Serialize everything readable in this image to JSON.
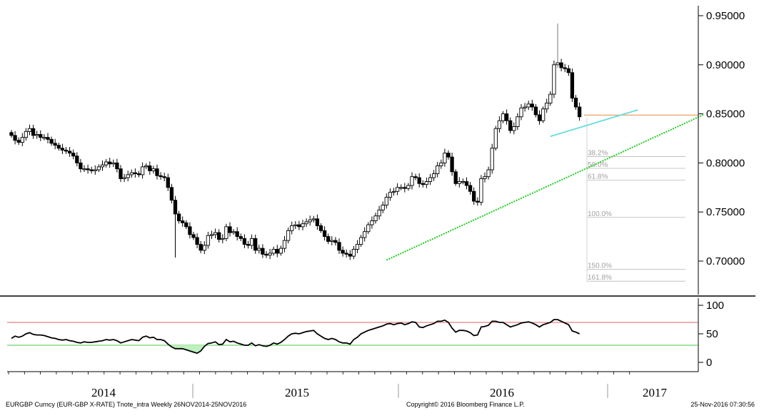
{
  "chart_data": {
    "type": "candlestick",
    "instrument": "EURGBP Curncy (EUR-GBP X-RATE) Tnote_intra",
    "period": "Weekly 26NOV2014-25NOV2016",
    "price_axis": {
      "ylim": [
        0.665,
        0.955
      ],
      "ticks": [
        0.95,
        0.9,
        0.85,
        0.8,
        0.75,
        0.7
      ],
      "tick_labels": [
        "0.95000",
        "0.90000",
        "0.85000",
        "0.80000",
        "0.75000",
        "0.70000"
      ]
    },
    "year_labels": [
      "2014",
      "2015",
      "2016",
      "2017"
    ],
    "fibonacci": {
      "labels": [
        "38.2%",
        "50.0%",
        "61.8%",
        "100.0%",
        "150.0%",
        "161.8%"
      ],
      "levels": [
        0.8065,
        0.7945,
        0.7825,
        0.7445,
        0.6915,
        0.6795
      ]
    },
    "lines": {
      "support_level": 0.8487,
      "uptrend": {
        "start": [
          103,
          0.701
        ],
        "end": [
          190,
          0.849
        ],
        "color": "#22cc22"
      },
      "resistance_trend": {
        "start": [
          148,
          0.827
        ],
        "end": [
          172,
          0.854
        ],
        "color": "#66dddd"
      },
      "support_color": "#f0a060"
    },
    "closes": [
      0.828,
      0.823,
      0.821,
      0.826,
      0.832,
      0.835,
      0.828,
      0.829,
      0.826,
      0.826,
      0.824,
      0.82,
      0.818,
      0.815,
      0.813,
      0.812,
      0.81,
      0.807,
      0.8,
      0.794,
      0.794,
      0.793,
      0.792,
      0.793,
      0.796,
      0.798,
      0.801,
      0.799,
      0.8,
      0.794,
      0.784,
      0.785,
      0.788,
      0.79,
      0.789,
      0.788,
      0.796,
      0.797,
      0.792,
      0.794,
      0.787,
      0.786,
      0.785,
      0.775,
      0.762,
      0.748,
      0.741,
      0.739,
      0.735,
      0.727,
      0.724,
      0.717,
      0.711,
      0.716,
      0.726,
      0.727,
      0.729,
      0.722,
      0.723,
      0.735,
      0.729,
      0.73,
      0.725,
      0.723,
      0.717,
      0.716,
      0.723,
      0.711,
      0.713,
      0.707,
      0.706,
      0.708,
      0.712,
      0.708,
      0.713,
      0.721,
      0.731,
      0.736,
      0.737,
      0.735,
      0.738,
      0.74,
      0.742,
      0.743,
      0.736,
      0.731,
      0.725,
      0.72,
      0.721,
      0.719,
      0.711,
      0.708,
      0.707,
      0.705,
      0.712,
      0.717,
      0.724,
      0.73,
      0.737,
      0.741,
      0.746,
      0.752,
      0.757,
      0.765,
      0.77,
      0.771,
      0.775,
      0.775,
      0.774,
      0.777,
      0.786,
      0.785,
      0.779,
      0.778,
      0.781,
      0.785,
      0.789,
      0.797,
      0.8,
      0.81,
      0.806,
      0.791,
      0.779,
      0.781,
      0.781,
      0.777,
      0.771,
      0.761,
      0.76,
      0.784,
      0.786,
      0.793,
      0.815,
      0.835,
      0.843,
      0.85,
      0.843,
      0.833,
      0.837,
      0.847,
      0.856,
      0.857,
      0.86,
      0.857,
      0.849,
      0.843,
      0.855,
      0.861,
      0.87,
      0.9,
      0.902,
      0.897,
      0.896,
      0.892,
      0.866,
      0.857,
      0.847
    ],
    "rsi": {
      "yticks": [
        100,
        50,
        0
      ],
      "upper": 70,
      "lower": 30,
      "values": [
        42,
        46,
        44,
        46,
        50,
        52,
        49,
        48,
        48,
        47,
        45,
        43,
        42,
        40,
        39,
        40,
        38,
        37,
        35,
        34,
        36,
        35,
        35,
        36,
        37,
        38,
        40,
        39,
        40,
        38,
        34,
        36,
        38,
        40,
        39,
        38,
        44,
        46,
        43,
        44,
        40,
        40,
        38,
        32,
        27,
        24,
        24,
        24,
        22,
        20,
        18,
        16,
        20,
        28,
        33,
        34,
        36,
        31,
        32,
        40,
        36,
        37,
        34,
        32,
        30,
        30,
        34,
        29,
        31,
        29,
        28,
        30,
        34,
        32,
        35,
        40,
        46,
        50,
        51,
        50,
        52,
        54,
        55,
        56,
        50,
        46,
        42,
        40,
        42,
        40,
        36,
        34,
        34,
        32,
        40,
        44,
        50,
        53,
        56,
        58,
        60,
        62,
        64,
        67,
        68,
        66,
        68,
        69,
        66,
        68,
        71,
        70,
        62,
        61,
        64,
        66,
        68,
        72,
        72,
        74,
        70,
        60,
        53,
        56,
        56,
        55,
        52,
        47,
        48,
        62,
        63,
        65,
        72,
        72,
        70,
        70,
        66,
        62,
        64,
        66,
        69,
        70,
        71,
        69,
        66,
        62,
        66,
        68,
        70,
        75,
        75,
        72,
        69,
        66,
        55,
        53,
        50
      ]
    }
  },
  "footer": {
    "left": "EURGBP Curncy (EUR-GBP X-RATE) Tnote_intra  Weekly 26NOV2014-25NOV2016",
    "center": "Copyright© 2016 Bloomberg Finance L.P.",
    "right": "25-Nov-2016 07:30:56"
  }
}
